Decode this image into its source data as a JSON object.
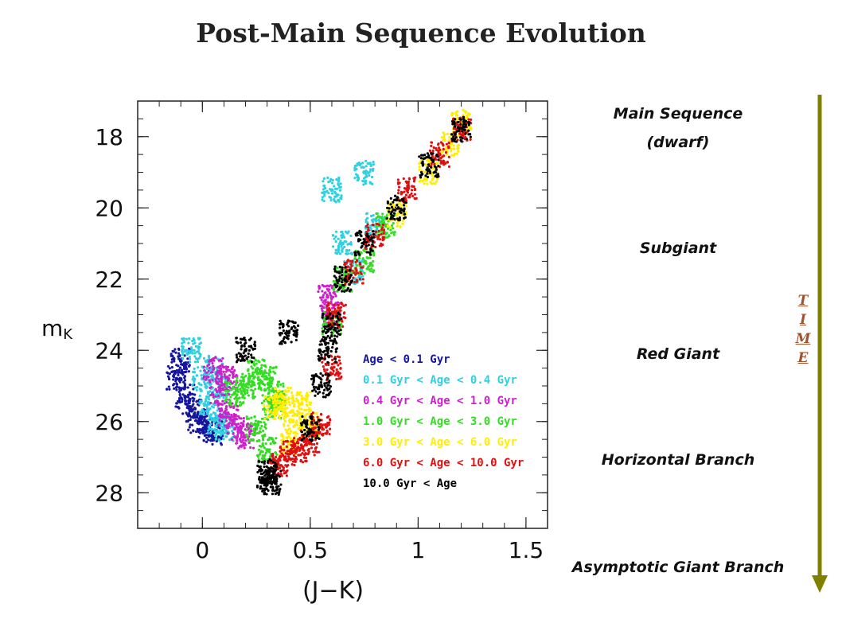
{
  "title": "Post-Main Sequence Evolution",
  "chart_data": {
    "type": "scatter",
    "title": "",
    "xlabel": "(J−K)",
    "ylabel": "m_K",
    "xlim": [
      -0.3,
      1.6
    ],
    "ylim": [
      29,
      17
    ],
    "y_inverted": true,
    "xticks": [
      "0",
      "0.5",
      "1",
      "1.5"
    ],
    "yticks": [
      "18",
      "20",
      "22",
      "24",
      "26",
      "28"
    ],
    "legend_position": "lower-right",
    "series": [
      {
        "name": "Age < 0.1 Gyr",
        "color": "#1515a0",
        "points": [
          [
            -0.12,
            24.8
          ],
          [
            -0.08,
            25.3
          ],
          [
            -0.05,
            25.7
          ],
          [
            -0.02,
            26.0
          ],
          [
            0.02,
            26.2
          ],
          [
            0.05,
            26.3
          ],
          [
            -0.1,
            24.3
          ]
        ]
      },
      {
        "name": "0.1 Gyr < Age < 0.4 Gyr",
        "color": "#30d0e0",
        "points": [
          [
            -0.05,
            24.0
          ],
          [
            0.0,
            24.8
          ],
          [
            0.03,
            25.5
          ],
          [
            0.07,
            26.0
          ],
          [
            0.1,
            26.2
          ],
          [
            0.05,
            24.5
          ],
          [
            0.08,
            25.0
          ],
          [
            0.6,
            19.5
          ],
          [
            0.65,
            21.0
          ],
          [
            0.7,
            21.8
          ],
          [
            0.75,
            19.0
          ],
          [
            0.8,
            20.5
          ]
        ]
      },
      {
        "name": "0.4 Gyr < Age < 1.0 Gyr",
        "color": "#cc22cc",
        "points": [
          [
            0.05,
            24.5
          ],
          [
            0.08,
            25.2
          ],
          [
            0.12,
            25.8
          ],
          [
            0.15,
            26.2
          ],
          [
            0.2,
            26.4
          ],
          [
            0.12,
            24.8
          ],
          [
            0.58,
            22.5
          ],
          [
            0.6,
            23.0
          ]
        ]
      },
      {
        "name": "1.0 Gyr < Age < 3.0 Gyr",
        "color": "#33dd22",
        "points": [
          [
            0.15,
            25.2
          ],
          [
            0.2,
            25.0
          ],
          [
            0.25,
            24.6
          ],
          [
            0.3,
            24.8
          ],
          [
            0.32,
            25.6
          ],
          [
            0.25,
            26.2
          ],
          [
            0.3,
            26.8
          ],
          [
            0.35,
            25.2
          ],
          [
            0.6,
            23.2
          ],
          [
            0.65,
            22.0
          ],
          [
            0.75,
            21.5
          ],
          [
            0.85,
            20.5
          ]
        ]
      },
      {
        "name": "3.0 Gyr < Age < 6.0 Gyr",
        "color": "#ffee00",
        "points": [
          [
            0.33,
            25.6
          ],
          [
            0.38,
            25.4
          ],
          [
            0.42,
            26.0
          ],
          [
            0.46,
            25.5
          ],
          [
            0.5,
            26.1
          ],
          [
            0.4,
            26.6
          ],
          [
            0.9,
            20.2
          ],
          [
            1.05,
            19.0
          ],
          [
            1.15,
            18.2
          ],
          [
            1.2,
            17.6
          ]
        ]
      },
      {
        "name": "6.0 Gyr < Age < 10.0 Gyr",
        "color": "#e01010",
        "points": [
          [
            0.35,
            27.2
          ],
          [
            0.4,
            26.9
          ],
          [
            0.45,
            26.8
          ],
          [
            0.5,
            26.6
          ],
          [
            0.55,
            26.1
          ],
          [
            0.6,
            24.5
          ],
          [
            0.62,
            23.0
          ],
          [
            0.7,
            21.8
          ],
          [
            0.8,
            20.8
          ],
          [
            0.95,
            19.5
          ],
          [
            1.1,
            18.5
          ],
          [
            1.2,
            17.8
          ]
        ]
      },
      {
        "name": "10.0 Gyr < Age",
        "color": "#000000",
        "points": [
          [
            0.3,
            27.6
          ],
          [
            0.3,
            27.4
          ],
          [
            0.32,
            27.7
          ],
          [
            0.5,
            26.2
          ],
          [
            0.55,
            25.0
          ],
          [
            0.58,
            24.0
          ],
          [
            0.6,
            23.3
          ],
          [
            0.2,
            24.0
          ],
          [
            0.4,
            23.5
          ],
          [
            0.65,
            22.0
          ],
          [
            0.75,
            21.0
          ],
          [
            0.9,
            20.0
          ],
          [
            1.05,
            18.8
          ],
          [
            1.2,
            17.8
          ]
        ]
      }
    ]
  },
  "stages": {
    "main_sequence": "Main Sequence",
    "dwarf": "(dwarf)",
    "subgiant": "Subgiant",
    "red_giant": "Red Giant",
    "horizontal_branch": "Horizontal Branch",
    "agb": "Asymptotic Giant Branch"
  },
  "time_letters": [
    "T",
    "I",
    "M",
    "E"
  ],
  "colors": {
    "arrow": "#808000",
    "time_text": "#a0522d"
  }
}
